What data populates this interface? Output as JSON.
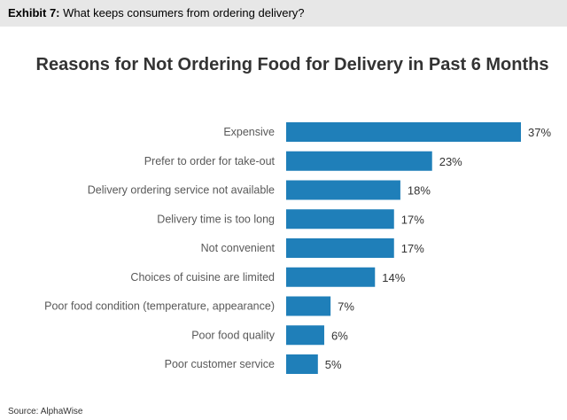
{
  "header": {
    "exhibit_label": "Exhibit 7:",
    "exhibit_caption": "What keeps consumers from ordering delivery?"
  },
  "footer": {
    "source": "Source: AlphaWise"
  },
  "colors": {
    "bar": "#1f7fb9"
  },
  "chart_data": {
    "type": "bar",
    "orientation": "horizontal",
    "title": "Reasons for Not Ordering Food for Delivery in Past 6 Months",
    "categories": [
      "Expensive",
      "Prefer to order for take-out",
      "Delivery ordering service not available",
      "Delivery time is too long",
      "Not convenient",
      "Choices of cuisine are limited",
      "Poor food condition (temperature, appearance)",
      "Poor food quality",
      "Poor customer service"
    ],
    "values": [
      37,
      23,
      18,
      17,
      17,
      14,
      7,
      6,
      5
    ],
    "value_labels": [
      "37%",
      "23%",
      "18%",
      "17%",
      "17%",
      "14%",
      "7%",
      "6%",
      "5%"
    ],
    "unit": "%",
    "xlim": [
      0,
      37
    ],
    "grid": false,
    "legend": "none"
  }
}
